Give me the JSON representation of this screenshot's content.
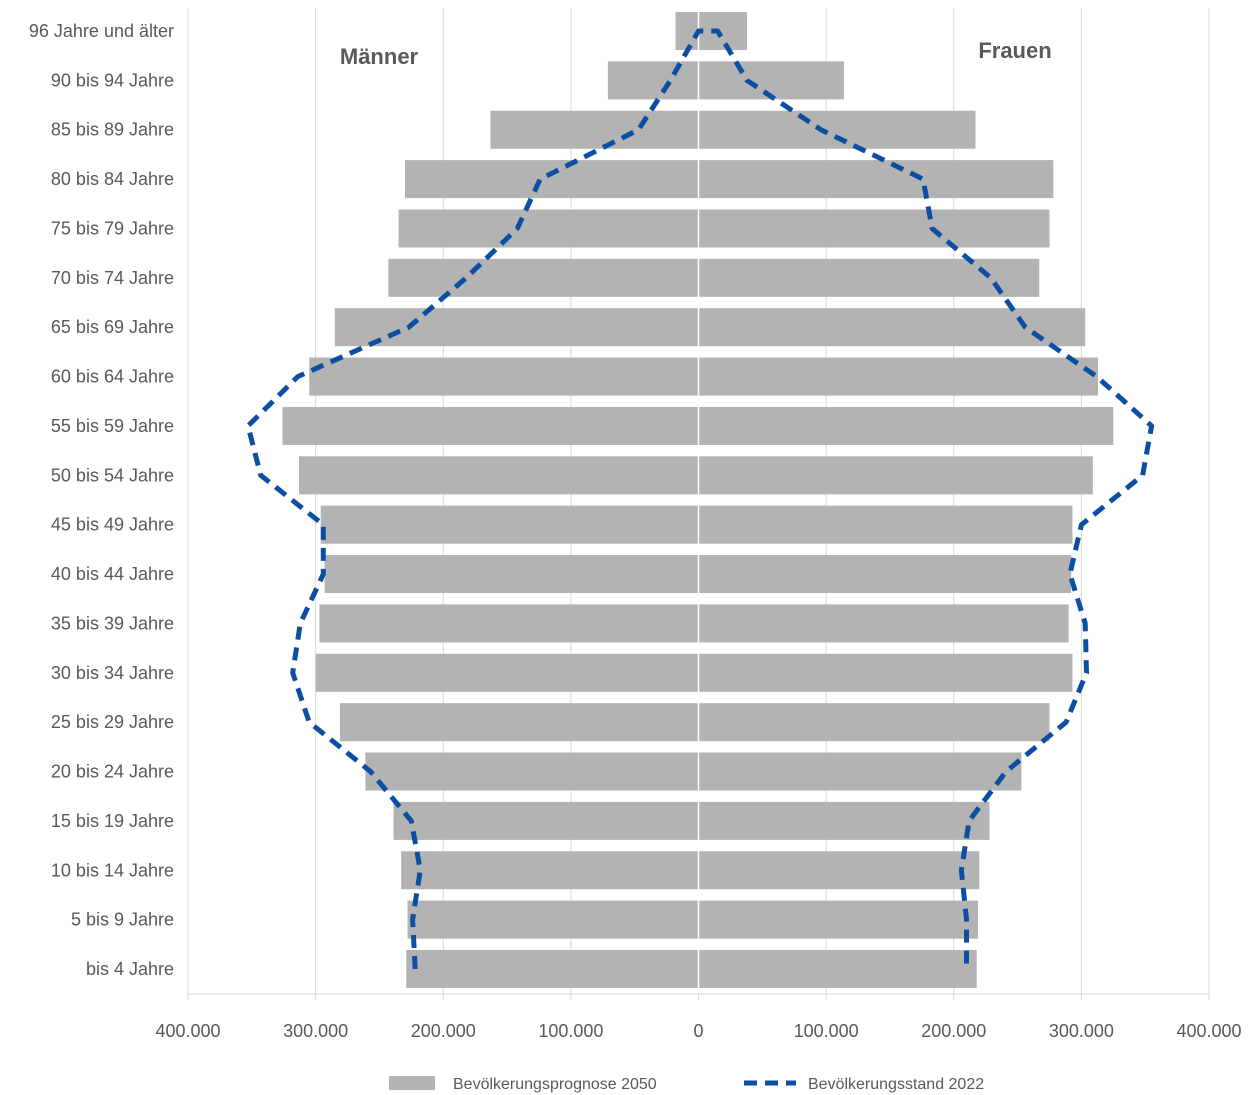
{
  "chart_data": {
    "type": "bar",
    "orientation": "horizontal",
    "layout": "population-pyramid",
    "categories": [
      "bis 4 Jahre",
      "5 bis 9 Jahre",
      "10 bis 14 Jahre",
      "15 bis 19 Jahre",
      "20 bis 24 Jahre",
      "25 bis 29 Jahre",
      "30 bis 34 Jahre",
      "35 bis 39 Jahre",
      "40 bis 44 Jahre",
      "45 bis 49 Jahre",
      "50 bis 54 Jahre",
      "55 bis 59 Jahre",
      "60 bis 64 Jahre",
      "65 bis 69 Jahre",
      "70 bis 74 Jahre",
      "75 bis 79 Jahre",
      "80 bis 84 Jahre",
      "85 bis 89 Jahre",
      "90 bis 94 Jahre",
      "96 Jahre und älter"
    ],
    "groups": {
      "left": "Männer",
      "right": "Frauen"
    },
    "series": [
      {
        "name": "Bevölkerungsprognose 2050",
        "style": "bar",
        "color": "#b3b3b3",
        "male": [
          229000,
          228000,
          233000,
          239000,
          261000,
          281000,
          300000,
          297000,
          293000,
          296000,
          313000,
          326000,
          305000,
          285000,
          243000,
          235000,
          230000,
          163000,
          71000,
          18000
        ],
        "female": [
          218000,
          219000,
          220000,
          228000,
          253000,
          275000,
          293000,
          290000,
          292000,
          293000,
          309000,
          325000,
          313000,
          303000,
          267000,
          275000,
          278000,
          217000,
          114000,
          38000
        ]
      },
      {
        "name": "Bevölkerungsstand 2022",
        "style": "dashed-line",
        "color": "#0b4ea2",
        "male": [
          222000,
          224000,
          218000,
          225000,
          257000,
          305000,
          318000,
          312000,
          294000,
          294000,
          343000,
          353000,
          314000,
          227000,
          182000,
          142000,
          124000,
          47000,
          22000,
          0
        ],
        "female": [
          210000,
          210000,
          206000,
          212000,
          241000,
          288000,
          304000,
          303000,
          291000,
          300000,
          348000,
          355000,
          312000,
          256000,
          229000,
          183000,
          176000,
          96000,
          38000,
          15000
        ]
      }
    ],
    "xlim": [
      -400000,
      400000
    ],
    "xticks": [
      -400000,
      -300000,
      -200000,
      -100000,
      0,
      100000,
      200000,
      300000,
      400000
    ],
    "xtick_labels": [
      "400.000",
      "300.000",
      "200.000",
      "100.000",
      "0",
      "100.000",
      "200.000",
      "300.000",
      "400.000"
    ],
    "grid": "vertical",
    "legend_position": "bottom"
  }
}
